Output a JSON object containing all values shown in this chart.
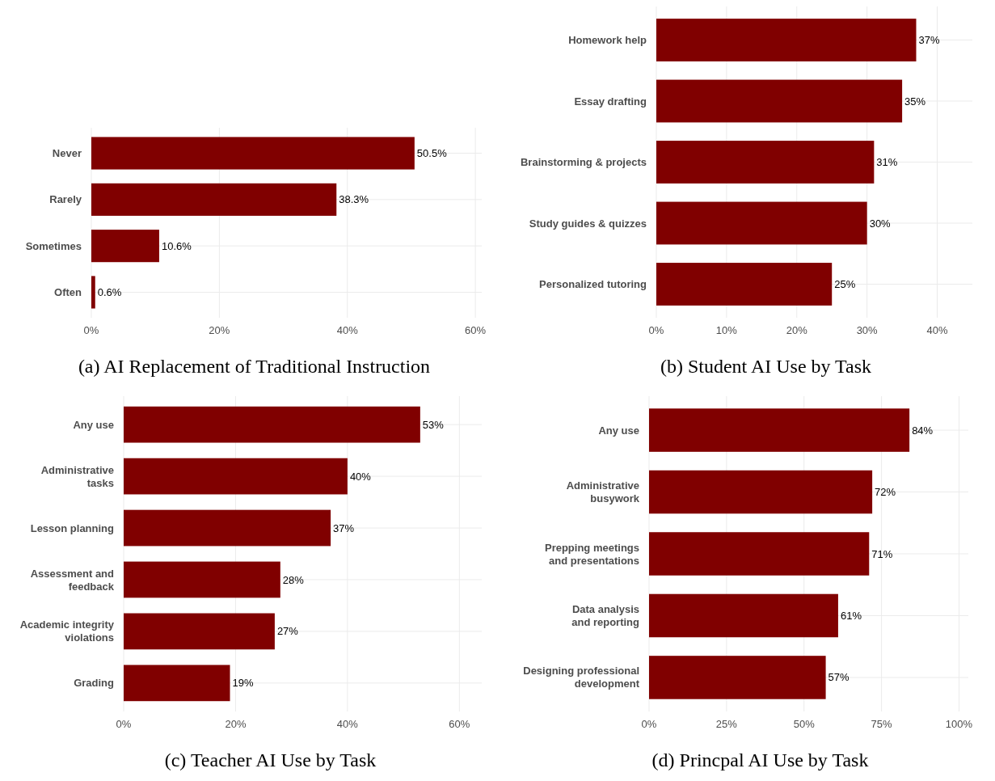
{
  "chart_data": [
    {
      "type": "bar",
      "orientation": "horizontal",
      "title": "(a) AI Replacement of Traditional Instruction",
      "categories": [
        "Never",
        "Rarely",
        "Sometimes",
        "Often"
      ],
      "values": [
        50.5,
        38.3,
        10.6,
        0.6
      ],
      "value_labels": [
        "50.5%",
        "38.3%",
        "10.6%",
        "0.6%"
      ],
      "color": "#800000",
      "xlim": [
        0,
        61
      ],
      "xticks": [
        {
          "value": 0,
          "label": "0%"
        },
        {
          "value": 20,
          "label": "20%"
        },
        {
          "value": 40,
          "label": "40%"
        },
        {
          "value": 60,
          "label": "60%"
        }
      ],
      "grid": true
    },
    {
      "type": "bar",
      "orientation": "horizontal",
      "title": "(b) Student AI Use by Task",
      "categories": [
        "Homework help",
        "Essay drafting",
        "Brainstorming & projects",
        "Study guides & quizzes",
        "Personalized tutoring"
      ],
      "values": [
        37,
        35,
        31,
        30,
        25
      ],
      "value_labels": [
        "37%",
        "35%",
        "31%",
        "30%",
        "25%"
      ],
      "color": "#800000",
      "xlim": [
        0,
        45
      ],
      "xticks": [
        {
          "value": 0,
          "label": "0%"
        },
        {
          "value": 10,
          "label": "10%"
        },
        {
          "value": 20,
          "label": "20%"
        },
        {
          "value": 30,
          "label": "30%"
        },
        {
          "value": 40,
          "label": "40%"
        }
      ],
      "grid": true
    },
    {
      "type": "bar",
      "orientation": "horizontal",
      "title": "(c) Teacher AI Use by Task",
      "categories": [
        "Any use",
        "Administrative\ntasks",
        "Lesson planning",
        "Assessment and\nfeedback",
        "Academic integrity\nviolations",
        "Grading"
      ],
      "values": [
        53,
        40,
        37,
        28,
        27,
        19
      ],
      "value_labels": [
        "53%",
        "40%",
        "37%",
        "28%",
        "27%",
        "19%"
      ],
      "color": "#800000",
      "xlim": [
        0,
        64
      ],
      "xticks": [
        {
          "value": 0,
          "label": "0%"
        },
        {
          "value": 20,
          "label": "20%"
        },
        {
          "value": 40,
          "label": "40%"
        },
        {
          "value": 60,
          "label": "60%"
        }
      ],
      "grid": true
    },
    {
      "type": "bar",
      "orientation": "horizontal",
      "title": "(d) Princpal AI Use by Task",
      "categories": [
        "Any use",
        "Administrative\nbusywork",
        "Prepping meetings\nand presentations",
        "Data analysis\nand reporting",
        "Designing professional\ndevelopment"
      ],
      "values": [
        84,
        72,
        71,
        61,
        57
      ],
      "value_labels": [
        "84%",
        "72%",
        "71%",
        "61%",
        "57%"
      ],
      "color": "#800000",
      "xlim": [
        0,
        103
      ],
      "xticks": [
        {
          "value": 0,
          "label": "0%"
        },
        {
          "value": 25,
          "label": "25%"
        },
        {
          "value": 50,
          "label": "50%"
        },
        {
          "value": 75,
          "label": "75%"
        },
        {
          "value": 100,
          "label": "100%"
        }
      ],
      "grid": true
    }
  ]
}
